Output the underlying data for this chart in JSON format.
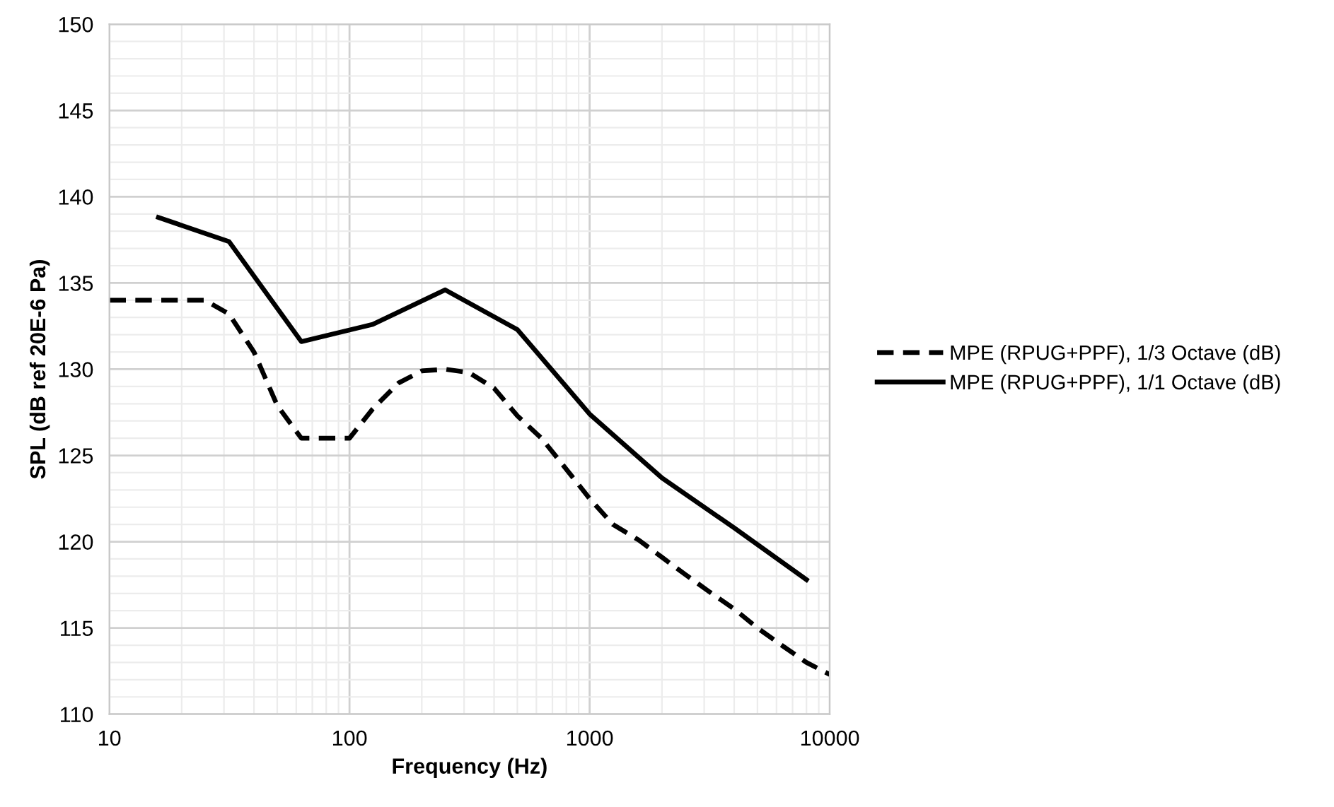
{
  "chart_data": {
    "type": "line",
    "xlabel": "Frequency (Hz)",
    "ylabel": "SPL (dB ref 20E-6 Pa)",
    "log": "x",
    "xlim": [
      10,
      10000
    ],
    "xticks": [
      10,
      100,
      1000,
      10000
    ],
    "ylim": [
      110,
      150
    ],
    "yticks": [
      110,
      115,
      120,
      125,
      130,
      135,
      140,
      145,
      150
    ],
    "grid": true,
    "legend": "right",
    "series": [
      {
        "name": "MPE (RPUG+PPF), 1/3 Octave (dB)",
        "color": "#000000",
        "line_style": "dashed",
        "x": [
          10,
          12.5,
          16,
          20,
          25,
          31.5,
          40,
          50,
          63,
          80,
          100,
          125,
          160,
          200,
          250,
          315,
          400,
          500,
          630,
          800,
          1000,
          1250,
          1600,
          2000,
          2500,
          3150,
          4000,
          5000,
          6300,
          8000,
          10000
        ],
        "values": [
          134,
          134,
          134,
          134,
          134,
          133.2,
          131,
          127.9,
          126,
          126,
          126,
          127.7,
          129.2,
          129.9,
          130,
          129.8,
          128.9,
          127.3,
          126,
          124.2,
          122.5,
          121,
          120.1,
          119.1,
          118.1,
          117.1,
          116.1,
          115,
          114,
          113,
          112.3
        ]
      },
      {
        "name": "MPE (RPUG+PPF), 1/1 Octave (dB)",
        "color": "#000000",
        "line_style": "solid",
        "x": [
          16,
          31.5,
          63,
          125,
          250,
          500,
          1000,
          2000,
          4000,
          8000
        ],
        "values": [
          138.8,
          137.4,
          131.6,
          132.6,
          134.6,
          132.3,
          127.4,
          123.7,
          120.8,
          117.8
        ]
      }
    ]
  }
}
